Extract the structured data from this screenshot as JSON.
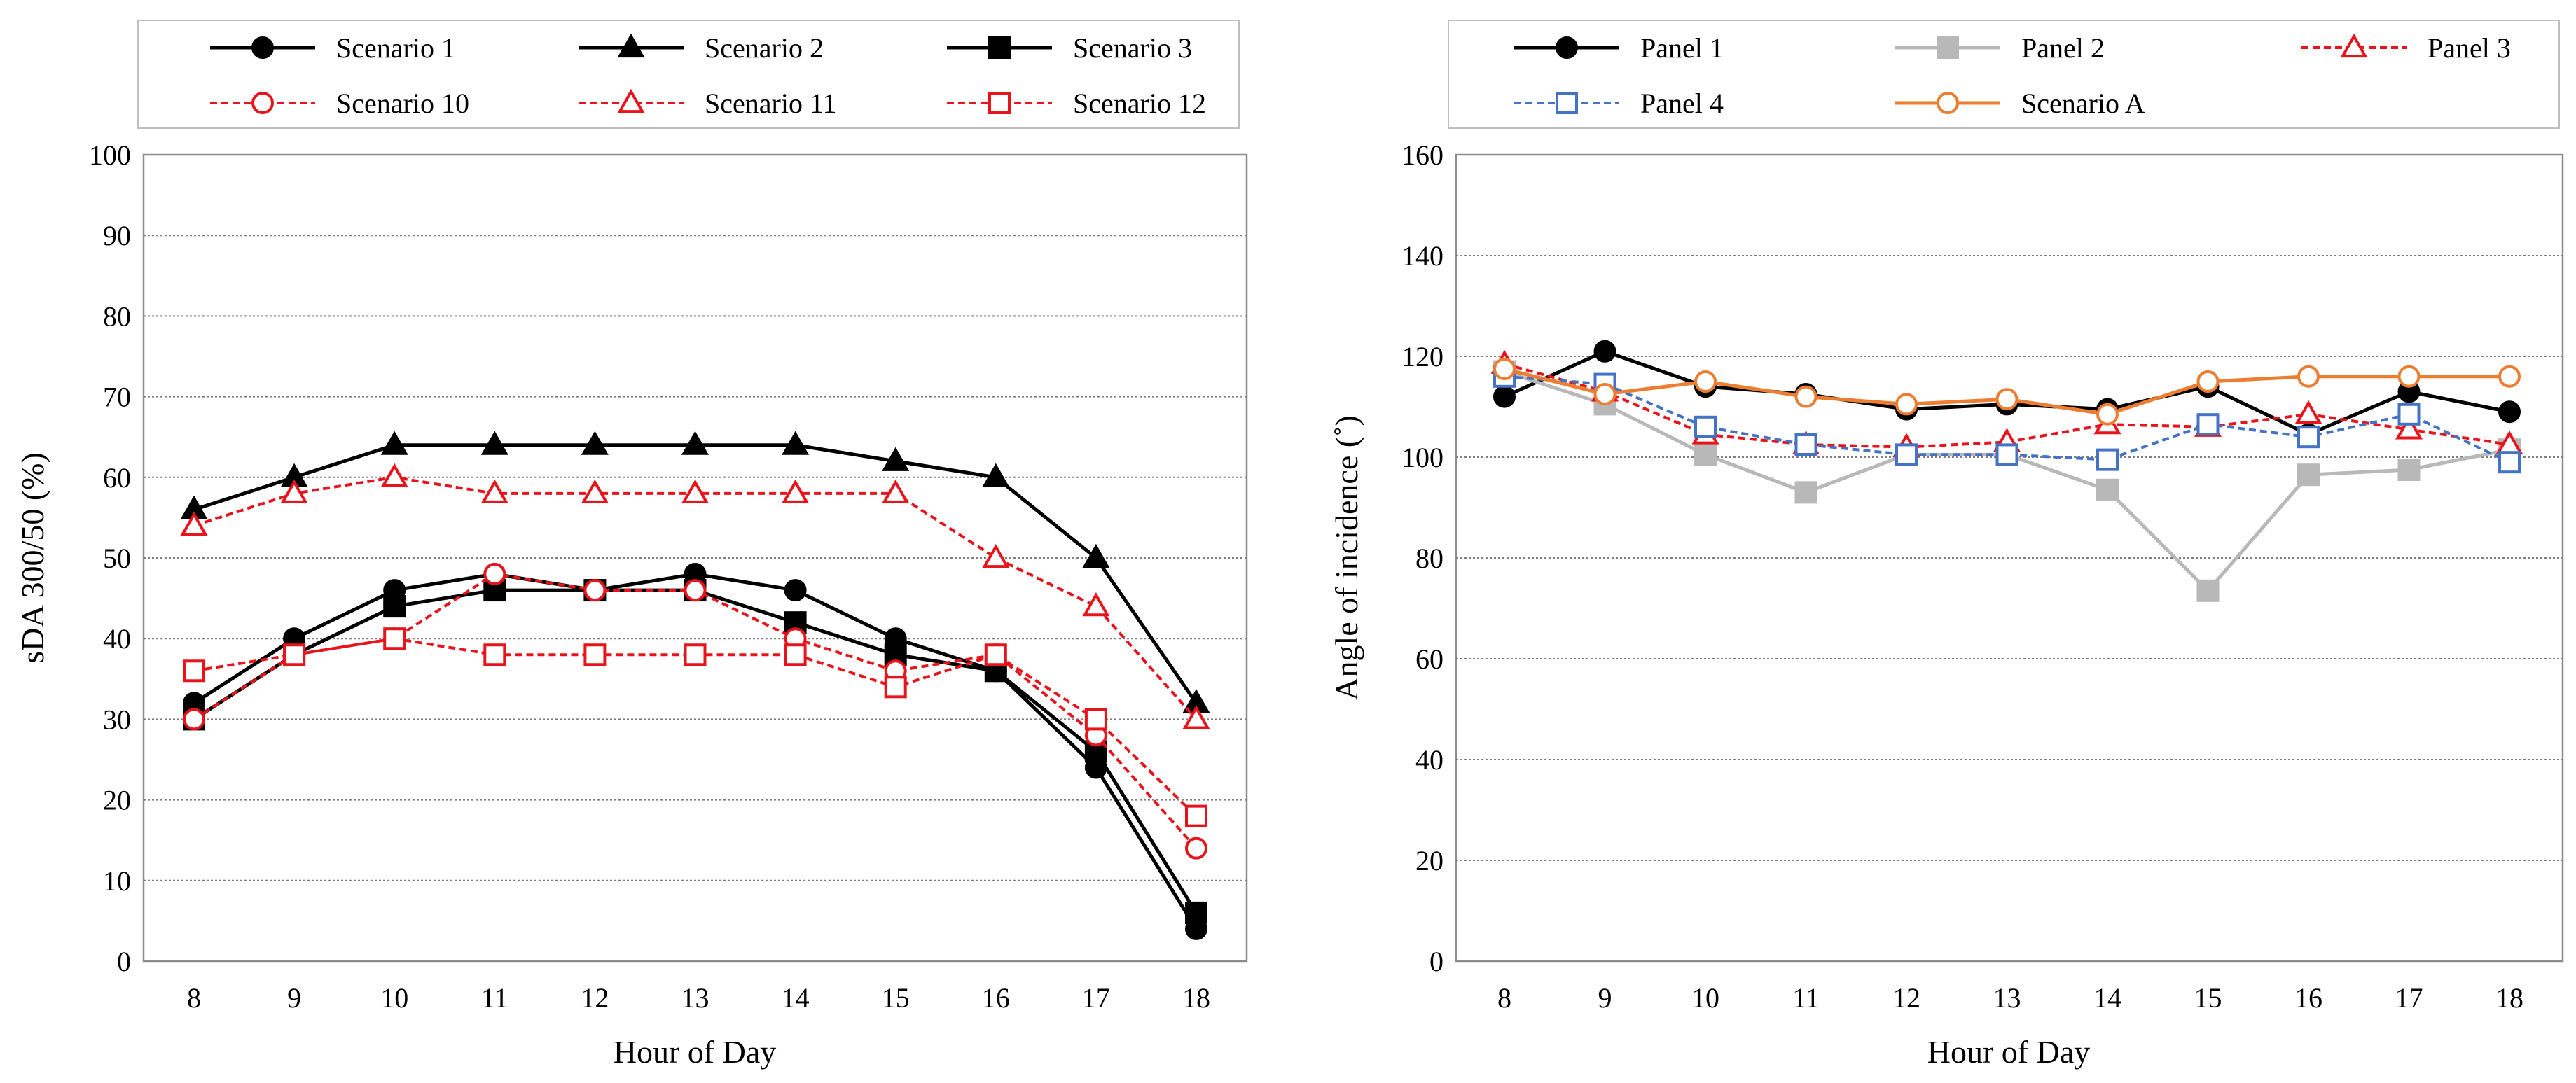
{
  "chart_data": [
    {
      "type": "line",
      "title": "",
      "xlabel": "Hour of Day",
      "ylabel": "sDA 300/50 (%)",
      "x": [
        8,
        9,
        10,
        11,
        12,
        13,
        14,
        15,
        16,
        17,
        18
      ],
      "ylim": [
        0,
        100
      ],
      "yticks": [
        0,
        10,
        20,
        30,
        40,
        50,
        60,
        70,
        80,
        90,
        100
      ],
      "grid": true,
      "legend_position": "top",
      "series": [
        {
          "name": "Scenario 1",
          "color": "#000000",
          "dash": "solid",
          "marker": "circle",
          "fill": "filled",
          "values": [
            32,
            40,
            46,
            48,
            46,
            48,
            46,
            40,
            36,
            24,
            4
          ]
        },
        {
          "name": "Scenario 2",
          "color": "#000000",
          "dash": "solid",
          "marker": "triangle",
          "fill": "filled",
          "values": [
            56,
            60,
            64,
            64,
            64,
            64,
            64,
            62,
            60,
            50,
            32
          ]
        },
        {
          "name": "Scenario 3",
          "color": "#000000",
          "dash": "solid",
          "marker": "square",
          "fill": "filled",
          "values": [
            30,
            38,
            44,
            46,
            46,
            46,
            42,
            38,
            36,
            26,
            6
          ]
        },
        {
          "name": "Scenario 10",
          "color": "#e8141b",
          "dash": "dashed",
          "marker": "circle",
          "fill": "open",
          "values": [
            30,
            38,
            40,
            48,
            46,
            46,
            40,
            36,
            38,
            28,
            14
          ]
        },
        {
          "name": "Scenario 11",
          "color": "#e8141b",
          "dash": "dashed",
          "marker": "triangle",
          "fill": "open",
          "values": [
            54,
            58,
            60,
            58,
            58,
            58,
            58,
            58,
            50,
            44,
            30
          ]
        },
        {
          "name": "Scenario 12",
          "color": "#e8141b",
          "dash": "dashed",
          "marker": "square",
          "fill": "open",
          "values": [
            36,
            38,
            40,
            38,
            38,
            38,
            38,
            34,
            38,
            30,
            18
          ]
        }
      ]
    },
    {
      "type": "line",
      "title": "",
      "xlabel": "Hour of Day",
      "ylabel": "Angle of incidence (˚)",
      "x": [
        8,
        9,
        10,
        11,
        12,
        13,
        14,
        15,
        16,
        17,
        18
      ],
      "ylim": [
        0,
        160
      ],
      "yticks": [
        0,
        20,
        40,
        60,
        80,
        100,
        120,
        140,
        160
      ],
      "grid": true,
      "legend_position": "top",
      "series": [
        {
          "name": "Panel 1",
          "color": "#000000",
          "dash": "solid",
          "marker": "circle",
          "fill": "filled",
          "values": [
            112,
            121,
            114,
            112.5,
            109.5,
            110.5,
            109.5,
            114,
            104.5,
            113,
            109
          ]
        },
        {
          "name": "Panel 2",
          "color": "#b8b8b8",
          "dash": "solid",
          "marker": "square",
          "fill": "filled",
          "values": [
            117,
            110.5,
            100.5,
            93,
            100.5,
            100.5,
            93.5,
            73.5,
            96.5,
            97.5,
            101.5
          ]
        },
        {
          "name": "Panel 3",
          "color": "#e8141b",
          "dash": "dashed",
          "marker": "triangle",
          "fill": "open",
          "values": [
            118.5,
            113,
            104.5,
            102.5,
            102,
            103,
            106.5,
            106,
            108.5,
            105.5,
            102.5
          ]
        },
        {
          "name": "Panel 4",
          "color": "#4472c4",
          "dash": "dashed",
          "marker": "square",
          "fill": "open",
          "values": [
            116,
            114.5,
            106,
            102.5,
            100.5,
            100.5,
            99.5,
            106.5,
            104,
            108.5,
            99
          ]
        },
        {
          "name": "Scenario A",
          "color": "#ed7d31",
          "dash": "solid",
          "marker": "circle",
          "fill": "open",
          "values": [
            117.5,
            112.5,
            115,
            112,
            110.5,
            111.5,
            108.5,
            115,
            116,
            116,
            116
          ]
        }
      ]
    }
  ]
}
